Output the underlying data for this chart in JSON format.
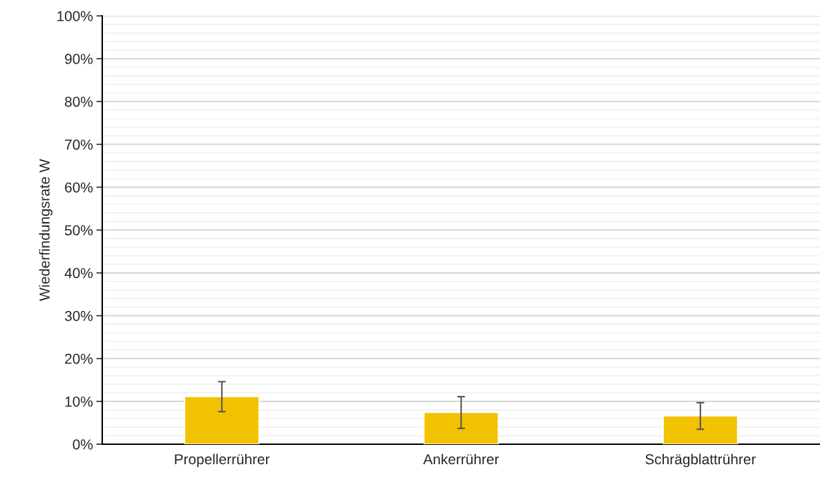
{
  "chart_data": {
    "type": "bar",
    "ylabel": "Wiederfindungsrate W",
    "categories": [
      "Propellerrührer",
      "Ankerrührer",
      "Schrägblattrührer"
    ],
    "values": [
      11.1,
      7.4,
      6.6
    ],
    "errors": [
      3.5,
      3.7,
      3.1
    ],
    "color": "#f2c200",
    "ylim": [
      0,
      100
    ],
    "yticks": [
      {
        "value": 0,
        "label": "0%"
      },
      {
        "value": 10,
        "label": "10%"
      },
      {
        "value": 20,
        "label": "20%"
      },
      {
        "value": 30,
        "label": "30%"
      },
      {
        "value": 40,
        "label": "40%"
      },
      {
        "value": 50,
        "label": "50%"
      },
      {
        "value": 60,
        "label": "60%"
      },
      {
        "value": 70,
        "label": "70%"
      },
      {
        "value": 80,
        "label": "80%"
      },
      {
        "value": 90,
        "label": "90%"
      },
      {
        "value": 100,
        "label": "100%"
      }
    ],
    "grid": "y"
  }
}
